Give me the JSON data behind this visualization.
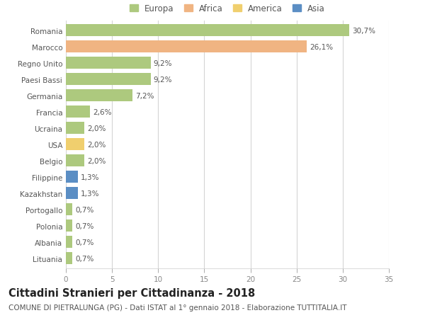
{
  "countries": [
    "Romania",
    "Marocco",
    "Regno Unito",
    "Paesi Bassi",
    "Germania",
    "Francia",
    "Ucraina",
    "USA",
    "Belgio",
    "Filippine",
    "Kazakhstan",
    "Portogallo",
    "Polonia",
    "Albania",
    "Lituania"
  ],
  "values": [
    30.7,
    26.1,
    9.2,
    9.2,
    7.2,
    2.6,
    2.0,
    2.0,
    2.0,
    1.3,
    1.3,
    0.7,
    0.7,
    0.7,
    0.7
  ],
  "labels": [
    "30,7%",
    "26,1%",
    "9,2%",
    "9,2%",
    "7,2%",
    "2,6%",
    "2,0%",
    "2,0%",
    "2,0%",
    "1,3%",
    "1,3%",
    "0,7%",
    "0,7%",
    "0,7%",
    "0,7%"
  ],
  "categories": [
    "Europa",
    "Africa",
    "Europa",
    "Europa",
    "Europa",
    "Europa",
    "Europa",
    "America",
    "Europa",
    "Asia",
    "Asia",
    "Europa",
    "Europa",
    "Europa",
    "Europa"
  ],
  "colors": {
    "Europa": "#adc97e",
    "Africa": "#f0b482",
    "America": "#f0cf6e",
    "Asia": "#5b8ec4"
  },
  "title": "Cittadini Stranieri per Cittadinanza - 2018",
  "subtitle": "COMUNE DI PIETRALUNGA (PG) - Dati ISTAT al 1° gennaio 2018 - Elaborazione TUTTITALIA.IT",
  "xlim": [
    0,
    35
  ],
  "xticks": [
    0,
    5,
    10,
    15,
    20,
    25,
    30,
    35
  ],
  "background_color": "#ffffff",
  "grid_color": "#d5d5d5",
  "title_fontsize": 10.5,
  "subtitle_fontsize": 7.5,
  "label_fontsize": 7.5,
  "tick_fontsize": 7.5,
  "legend_fontsize": 8.5
}
